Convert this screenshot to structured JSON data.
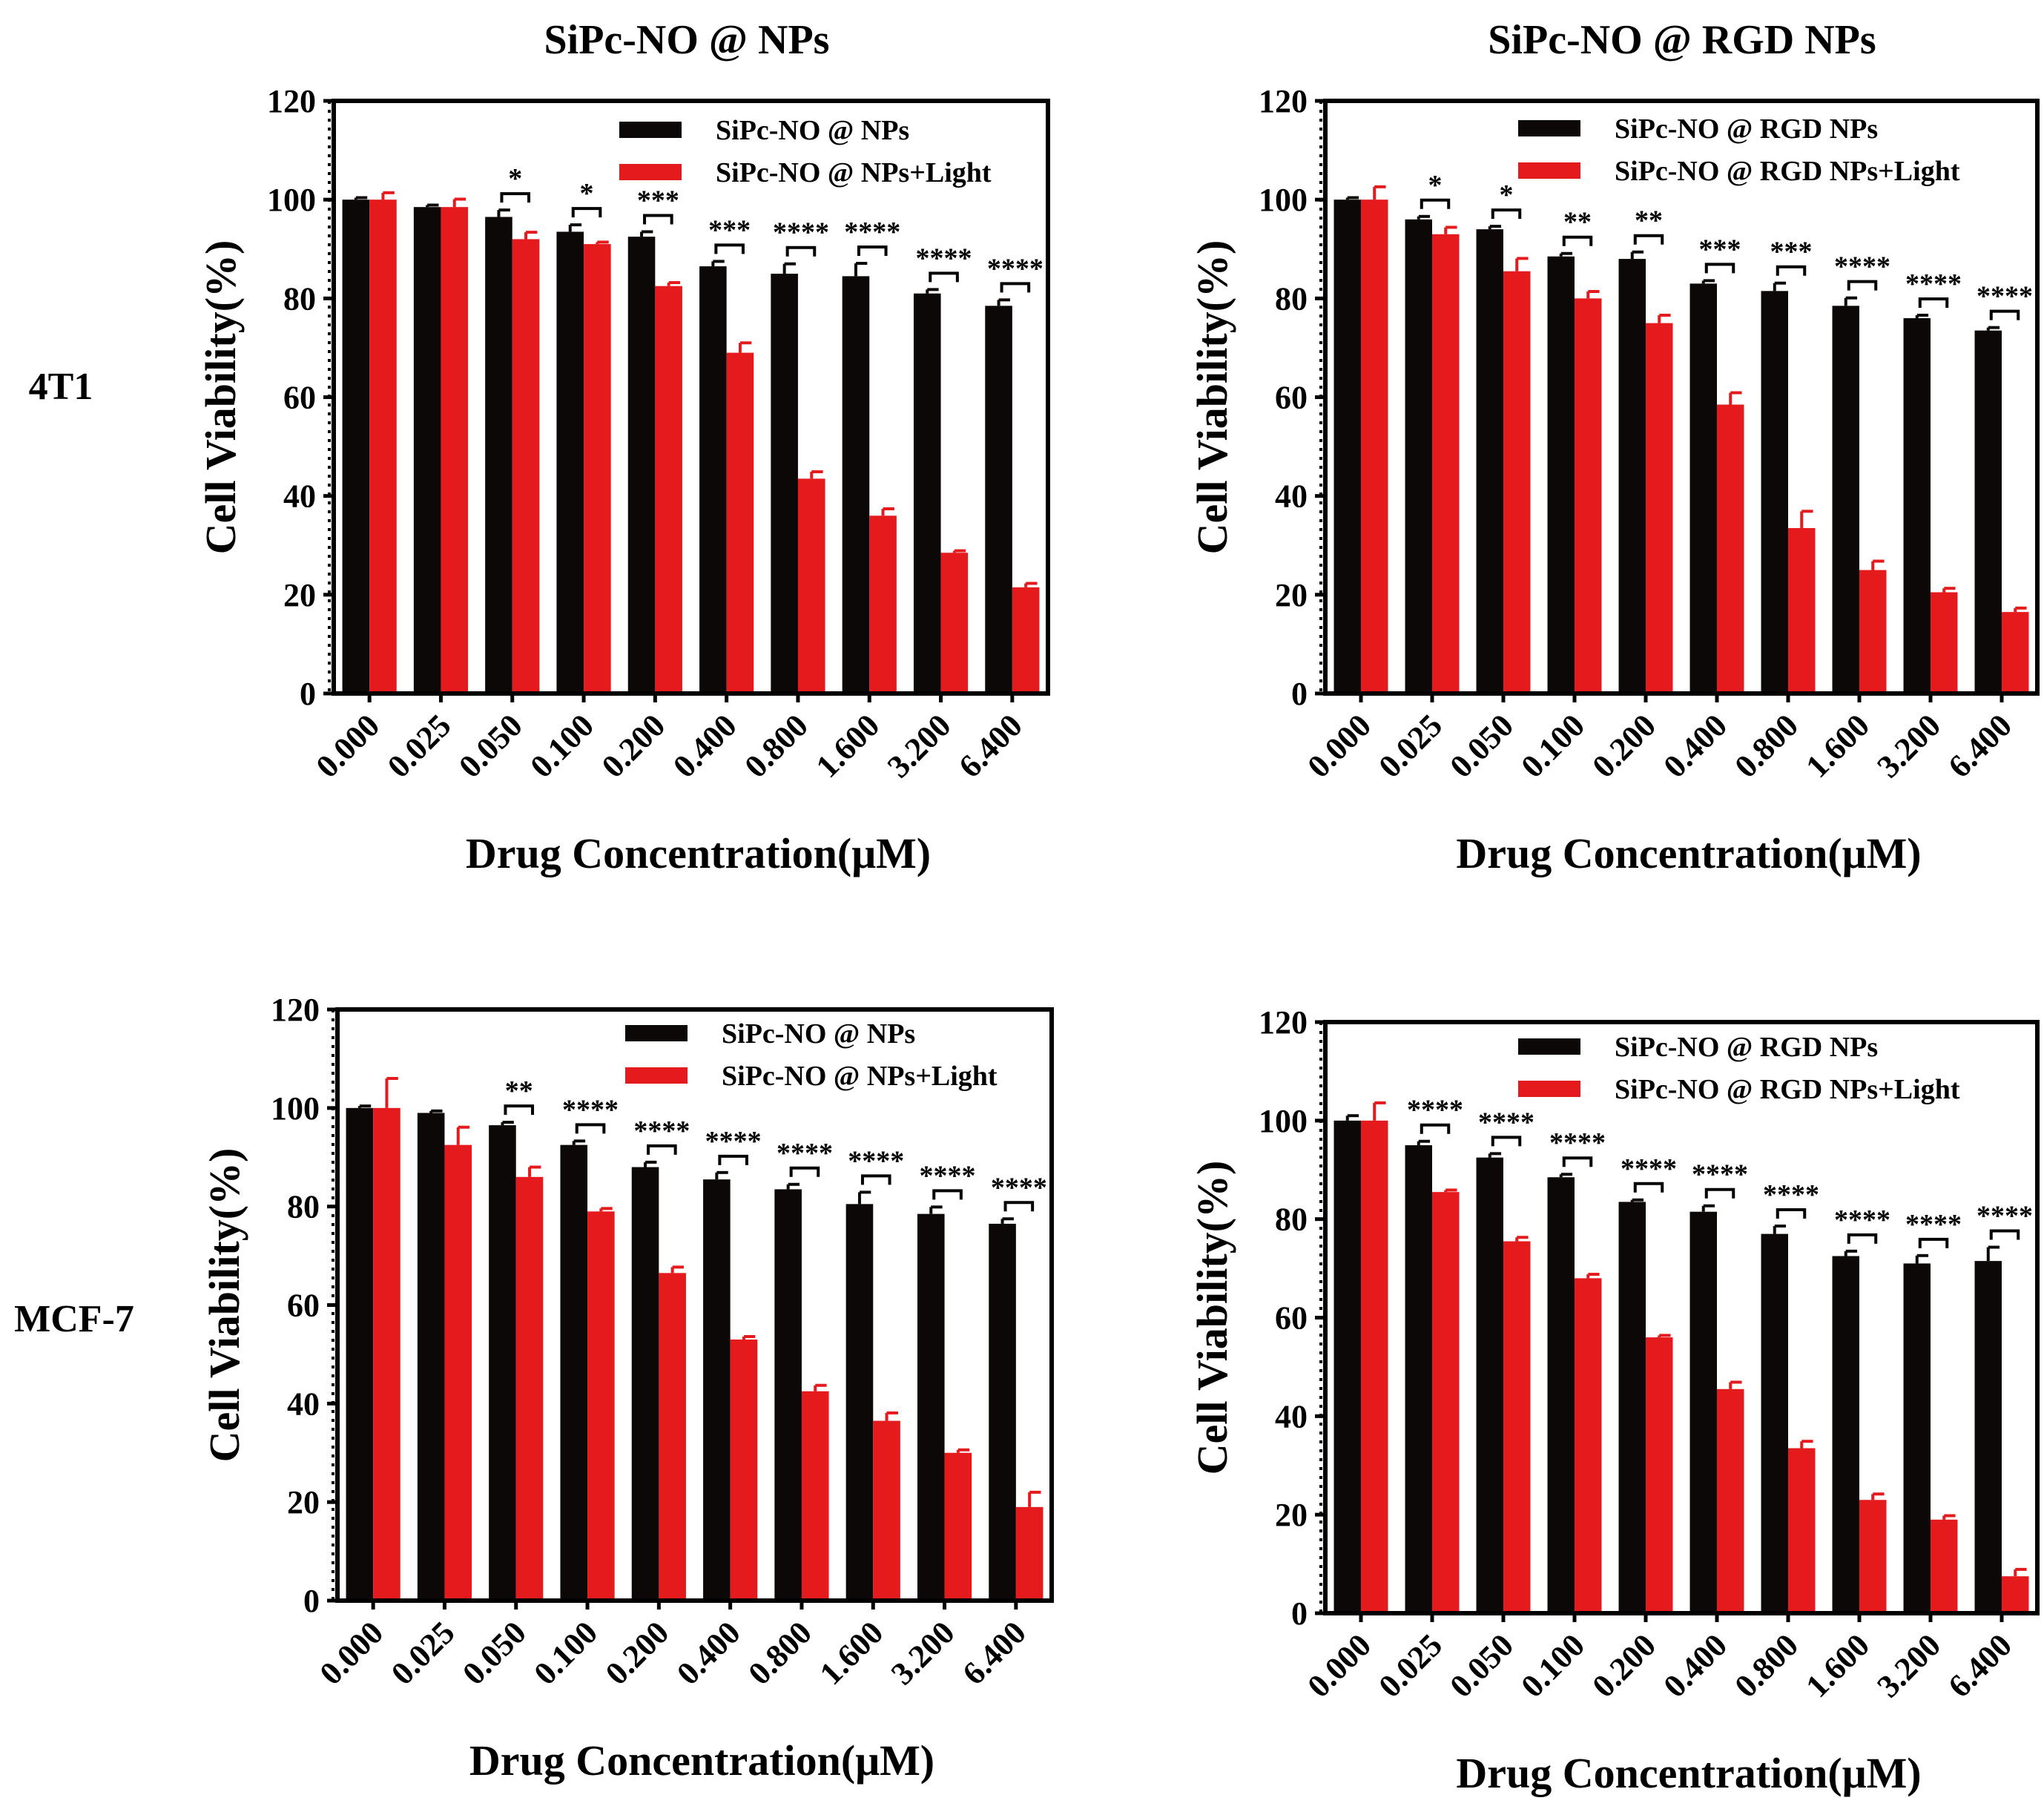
{
  "figure": {
    "column_titles": [
      "SiPc-NO @ NPs",
      "SiPc-NO @ RGD NPs"
    ],
    "row_labels": [
      "4T1",
      "MCF-7"
    ]
  },
  "colors": {
    "dark": "#0d0808",
    "light": "#e41a1c",
    "axis": "#000000"
  },
  "chart_data": [
    {
      "type": "bar",
      "row_label": "4T1",
      "title": "SiPc-NO @ NPs",
      "xlabel": "Drug Concentration(μM)",
      "ylabel": "Cell Viability(%)",
      "ylim": [
        0,
        120
      ],
      "yticks": [
        0,
        20,
        40,
        60,
        80,
        100,
        120
      ],
      "categories": [
        "0.000",
        "0.025",
        "0.050",
        "0.100",
        "0.200",
        "0.400",
        "0.800",
        "1.600",
        "3.200",
        "6.400"
      ],
      "legend_position": "top-right",
      "series": [
        {
          "name": "SiPc-NO @ NPs",
          "color": "dark",
          "values": [
            100,
            98.5,
            96.5,
            93.5,
            92.5,
            86.5,
            85,
            84.5,
            81,
            78.5
          ],
          "errors": [
            0.4,
            0.4,
            1.4,
            1.4,
            1.0,
            1.0,
            2.0,
            2.6,
            0.8,
            1.2
          ]
        },
        {
          "name": "SiPc-NO @ NPs+Light",
          "color": "light",
          "values": [
            100,
            98.5,
            92,
            91,
            82.5,
            69,
            43.5,
            36,
            28.5,
            21.5
          ],
          "errors": [
            1.4,
            1.6,
            1.4,
            0.4,
            0.7,
            2.0,
            1.4,
            1.4,
            0.4,
            0.8
          ]
        }
      ],
      "significance": [
        "",
        "",
        "*",
        "*",
        "***",
        "***",
        "****",
        "****",
        "****",
        "****"
      ]
    },
    {
      "type": "bar",
      "row_label": "4T1",
      "title": "SiPc-NO @ RGD NPs",
      "xlabel": "Drug Concentration(μM)",
      "ylabel": "Cell Viability(%)",
      "ylim": [
        0,
        120
      ],
      "yticks": [
        0,
        20,
        40,
        60,
        80,
        100,
        120
      ],
      "categories": [
        "0.000",
        "0.025",
        "0.050",
        "0.100",
        "0.200",
        "0.400",
        "0.800",
        "1.600",
        "3.200",
        "6.400"
      ],
      "legend_position": "top-right",
      "series": [
        {
          "name": "SiPc-NO @ RGD NPs",
          "color": "dark",
          "values": [
            100,
            96,
            94,
            88.5,
            88,
            83,
            81.5,
            78.5,
            76,
            73.5
          ],
          "errors": [
            0.4,
            0.6,
            0.6,
            0.6,
            1.4,
            0.6,
            1.6,
            1.6,
            0.6,
            0.6
          ]
        },
        {
          "name": "SiPc-NO @ RGD NPs+Light",
          "color": "light",
          "values": [
            100,
            93,
            85.5,
            80,
            75,
            58.5,
            33.5,
            25,
            20.5,
            16.5
          ],
          "errors": [
            2.6,
            1.4,
            2.6,
            1.4,
            1.6,
            2.4,
            3.4,
            1.8,
            0.8,
            0.8
          ]
        }
      ],
      "significance": [
        "",
        "*",
        "*",
        "**",
        "**",
        "***",
        "***",
        "****",
        "****",
        "****"
      ]
    },
    {
      "type": "bar",
      "row_label": "MCF-7",
      "title": "",
      "xlabel": "Drug Concentration(μM)",
      "ylabel": "Cell Viability(%)",
      "ylim": [
        0,
        120
      ],
      "yticks": [
        0,
        20,
        40,
        60,
        80,
        100,
        120
      ],
      "categories": [
        "0.000",
        "0.025",
        "0.050",
        "0.100",
        "0.200",
        "0.400",
        "0.800",
        "1.600",
        "3.200",
        "6.400"
      ],
      "legend_position": "top-right",
      "series": [
        {
          "name": "SiPc-NO @ NPs",
          "color": "dark",
          "values": [
            100,
            99,
            96.5,
            92.5,
            88,
            85.5,
            83.5,
            80.5,
            78.5,
            76.5
          ],
          "errors": [
            0.4,
            0.4,
            0.6,
            0.8,
            1.0,
            1.4,
            1.0,
            2.4,
            1.4,
            1.0
          ]
        },
        {
          "name": "SiPc-NO @ NPs+Light",
          "color": "light",
          "values": [
            100,
            92.5,
            86,
            79,
            66.5,
            53,
            42.5,
            36.5,
            30,
            19
          ],
          "errors": [
            6.0,
            3.6,
            2.0,
            0.6,
            1.2,
            0.6,
            1.2,
            1.6,
            0.6,
            3.0
          ]
        }
      ],
      "significance": [
        "",
        "",
        "**",
        "****",
        "****",
        "****",
        "****",
        "****",
        "****",
        "****"
      ]
    },
    {
      "type": "bar",
      "row_label": "MCF-7",
      "title": "",
      "xlabel": "Drug Concentration(μM)",
      "ylabel": "Cell Viability(%)",
      "ylim": [
        0,
        120
      ],
      "yticks": [
        0,
        20,
        40,
        60,
        80,
        100,
        120
      ],
      "categories": [
        "0.000",
        "0.025",
        "0.050",
        "0.100",
        "0.200",
        "0.400",
        "0.800",
        "1.600",
        "3.200",
        "6.400"
      ],
      "legend_position": "top-right",
      "series": [
        {
          "name": "SiPc-NO @ RGD NPs",
          "color": "dark",
          "values": [
            100,
            95,
            92.5,
            88.5,
            83.5,
            81.5,
            77,
            72.5,
            71,
            71.5
          ],
          "errors": [
            1.0,
            0.8,
            0.8,
            0.6,
            0.4,
            1.2,
            1.6,
            1.0,
            1.6,
            2.8
          ]
        },
        {
          "name": "SiPc-NO @ RGD NPs+Light",
          "color": "light",
          "values": [
            100,
            85.5,
            75.5,
            68,
            56,
            45.5,
            33.5,
            23,
            19,
            7.5
          ],
          "errors": [
            3.6,
            0.4,
            0.8,
            0.8,
            0.4,
            1.4,
            1.4,
            1.2,
            0.8,
            1.4
          ]
        }
      ],
      "significance": [
        "",
        "****",
        "****",
        "****",
        "****",
        "****",
        "****",
        "****",
        "****",
        "****"
      ]
    }
  ]
}
